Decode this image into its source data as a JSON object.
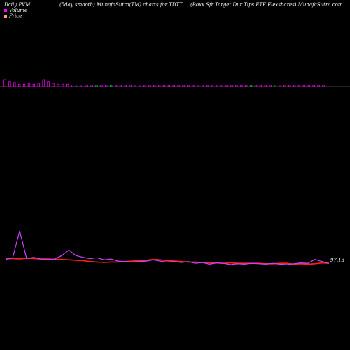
{
  "header": {
    "left": "Daily PVM",
    "middle": "(5day smooth) MunafaSutra(TM) charts for TDTT",
    "right": "(Boxx Sfr Target Dur Tips ETF Flexshares) MunafaSutra.com"
  },
  "legend": [
    {
      "label": "Volume",
      "color": "#ff00ff"
    },
    {
      "label": "Price",
      "color": "#ffa07a"
    }
  ],
  "colors": {
    "volume_up": "#ff00ff",
    "volume_down": "#00cc44",
    "price": "#ff2020",
    "smooth": "#cc44ff",
    "axis": "#ffffff"
  },
  "chart_data": [
    {
      "type": "bar",
      "title": "Volume",
      "up_down": [
        "up",
        "up",
        "up",
        "up",
        "up",
        "up",
        "up",
        "up",
        "up",
        "up",
        "up",
        "up",
        "up",
        "up",
        "up",
        "up",
        "up",
        "up",
        "up",
        "down",
        "up",
        "up",
        "down",
        "up",
        "up",
        "up",
        "up",
        "up",
        "up",
        "up",
        "up",
        "up",
        "up",
        "up",
        "up",
        "up",
        "up",
        "up",
        "up",
        "up",
        "up",
        "up",
        "up",
        "up",
        "up",
        "up",
        "up",
        "up",
        "up",
        "up",
        "up",
        "down",
        "up",
        "up",
        "up",
        "up",
        "down",
        "up",
        "up",
        "up",
        "up",
        "up",
        "up",
        "up",
        "up",
        "up",
        "up"
      ],
      "values": [
        8,
        6,
        5,
        3,
        3,
        4,
        3,
        4,
        8,
        6,
        4,
        3,
        3,
        3,
        2,
        2,
        2,
        2,
        2,
        1,
        1,
        2,
        1,
        1,
        1,
        1,
        1,
        1,
        1,
        1,
        1,
        1,
        1,
        1,
        1,
        1,
        1,
        1,
        1,
        1,
        1,
        1,
        1,
        1,
        1,
        1,
        1,
        1,
        1,
        1,
        1,
        1,
        1,
        1,
        1,
        1,
        1,
        1,
        1,
        1,
        1,
        1,
        1,
        1,
        1,
        1,
        1
      ]
    },
    {
      "type": "line",
      "title": "Price",
      "series": [
        {
          "values": [
            0.5,
            0.5,
            0.4,
            0.6,
            0.5,
            0.4,
            0.4,
            0.3,
            0.3,
            0.2,
            0.1,
            0.0,
            -0.2,
            -0.3,
            -0.4,
            -0.3,
            -0.3,
            -0.2,
            -0.1,
            0.0,
            0.1,
            0.3,
            0.2,
            0.0,
            -0.1,
            -0.2,
            -0.3,
            -0.3,
            -0.4,
            -0.5,
            -0.5,
            -0.6,
            -0.5,
            -0.6,
            -0.6,
            -0.6,
            -0.6,
            -0.7,
            -0.7,
            -0.6,
            -0.6,
            -0.8,
            -0.7,
            -0.8,
            -0.7,
            -0.5,
            -0.6
          ]
        },
        {
          "values": [
            0.3,
            0.6,
            7.0,
            0.5,
            0.8,
            0.4,
            0.3,
            0.4,
            1.2,
            2.5,
            1.2,
            0.8,
            0.5,
            0.7,
            0.2,
            0.4,
            -0.1,
            -0.2,
            -0.3,
            -0.2,
            -0.1,
            0.2,
            -0.1,
            -0.3,
            -0.2,
            -0.4,
            -0.2,
            -0.6,
            -0.4,
            -0.8,
            -0.5,
            -0.6,
            -0.9,
            -0.7,
            -0.8,
            -0.6,
            -0.7,
            -0.8,
            -0.6,
            -0.8,
            -0.9,
            -0.7,
            -0.5,
            -0.6,
            0.3,
            -0.2,
            -0.6
          ]
        }
      ],
      "last_price_label": "97.13"
    }
  ]
}
